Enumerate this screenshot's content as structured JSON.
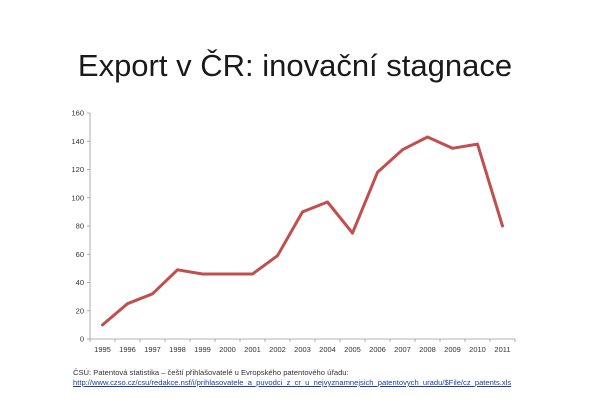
{
  "slide": {
    "title": "Export v ČR: inovační stagnace",
    "source_text": "ČSÚ: Patentová statistika – čeští přihlašovatelé u Evropského patentového úřadu:",
    "source_link": "http://www.czso.cz/csu/redakce.nsf/i/prihlasovatele_a_puvodci_z_cr_u_nejvyznamnejsich_patentovych_uradu/$File/cz_patents.xls"
  },
  "chart_data": {
    "type": "line",
    "title": "",
    "xlabel": "",
    "ylabel": "",
    "x": [
      "1995",
      "1996",
      "1997",
      "1998",
      "1999",
      "2000",
      "2001",
      "2002",
      "2003",
      "2004",
      "2005",
      "2006",
      "2007",
      "2008",
      "2009",
      "2010",
      "2011"
    ],
    "series": [
      {
        "values": [
          10,
          25,
          32,
          49,
          46,
          46,
          46,
          59,
          90,
          97,
          75,
          118,
          134,
          143,
          135,
          138,
          80
        ],
        "color": "#c0504d"
      }
    ],
    "ylim": [
      0,
      160
    ],
    "yticks": [
      0,
      20,
      40,
      60,
      80,
      100,
      120,
      140,
      160
    ],
    "grid": false,
    "legend": "none"
  }
}
